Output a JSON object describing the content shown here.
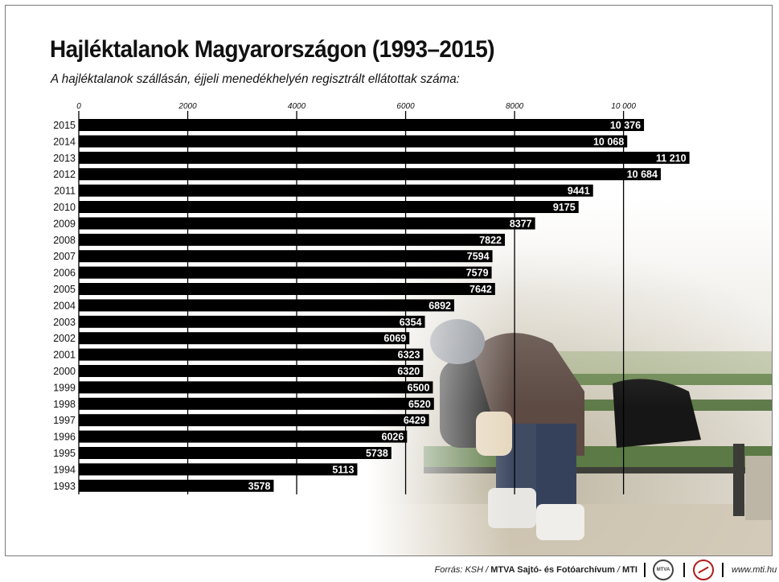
{
  "chart_data": {
    "type": "bar",
    "orientation": "horizontal",
    "title": "Hajléktalanok Magyarországon (1993–2015)",
    "subtitle": "A hajléktalanok szállásán, éjjeli menedékhelyén regisztrált ellátottak száma:",
    "categories": [
      "2015",
      "2014",
      "2013",
      "2012",
      "2011",
      "2010",
      "2009",
      "2008",
      "2007",
      "2006",
      "2005",
      "2004",
      "2003",
      "2002",
      "2001",
      "2000",
      "1999",
      "1998",
      "1997",
      "1996",
      "1995",
      "1994",
      "1993"
    ],
    "values": [
      10376,
      10068,
      11210,
      10684,
      9441,
      9175,
      8377,
      7822,
      7594,
      7579,
      7642,
      6892,
      6354,
      6069,
      6323,
      6320,
      6500,
      6520,
      6429,
      6026,
      5738,
      5113,
      3578
    ],
    "value_labels": [
      "10 376",
      "10 068",
      "11 210",
      "10 684",
      "9441",
      "9175",
      "8377",
      "7822",
      "7594",
      "7579",
      "7642",
      "6892",
      "6354",
      "6069",
      "6323",
      "6320",
      "6500",
      "6520",
      "6429",
      "6026",
      "5738",
      "5113",
      "3578"
    ],
    "xticks": [
      0,
      2000,
      4000,
      6000,
      8000,
      10000
    ],
    "xtick_labels": [
      "0",
      "2000",
      "4000",
      "6000",
      "8000",
      "10 000"
    ],
    "xlim": [
      0,
      11210
    ],
    "grid": true,
    "bar_color": "#000000",
    "label_color": "#ffffff"
  },
  "footer": {
    "source_prefix": "Forrás: KSH / ",
    "source_bold": "MTVA Sajtó- és Fotóarchívum",
    "source_mid": " / ",
    "source_end": "MTI",
    "logo_mtva": "MTVA",
    "website": "www.mti.hu"
  },
  "illustration": "photo-person-sleeping-on-bench-icon"
}
